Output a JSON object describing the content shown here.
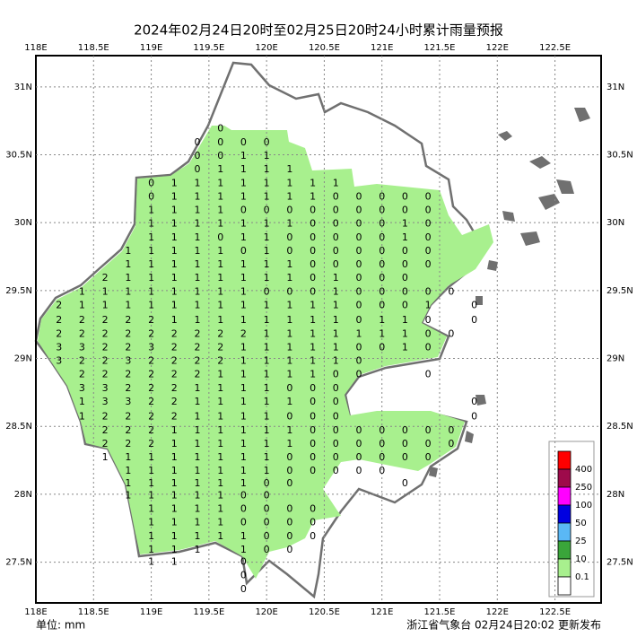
{
  "map": {
    "title": "2024年02月24日20时至02月25日20时24小时累计雨量预报",
    "unit": "单位: mm",
    "footer": "浙江省气象台 02月24日20:02 更新发布",
    "xlim": [
      118,
      122.9
    ],
    "ylim": [
      27.2,
      31.23
    ],
    "xticks": [
      {
        "value": 118,
        "label": "118E"
      },
      {
        "value": 118.5,
        "label": "118.5E"
      },
      {
        "value": 119,
        "label": "119E"
      },
      {
        "value": 119.5,
        "label": "119.5E"
      },
      {
        "value": 120,
        "label": "120E"
      },
      {
        "value": 120.5,
        "label": "120.5E"
      },
      {
        "value": 121,
        "label": "121E"
      },
      {
        "value": 121.5,
        "label": "121.5E"
      },
      {
        "value": 122,
        "label": "122E"
      },
      {
        "value": 122.5,
        "label": "122.5E"
      }
    ],
    "yticks": [
      {
        "value": 27.5,
        "label": "27.5N"
      },
      {
        "value": 28,
        "label": "28N"
      },
      {
        "value": 28.5,
        "label": "28.5N"
      },
      {
        "value": 29,
        "label": "29N"
      },
      {
        "value": 29.5,
        "label": "29.5N"
      },
      {
        "value": 30,
        "label": "30N"
      },
      {
        "value": 30.5,
        "label": "30.5N"
      },
      {
        "value": 31,
        "label": "31N"
      }
    ],
    "legend": [
      {
        "label": "400",
        "color": "#ff0000"
      },
      {
        "label": "250",
        "color": "#9e0a4b"
      },
      {
        "label": "100",
        "color": "#ff00ff"
      },
      {
        "label": "50",
        "color": "#0000e0"
      },
      {
        "label": "25",
        "color": "#5ab8f5"
      },
      {
        "label": "10",
        "color": "#3aa53a"
      },
      {
        "label": "0.1",
        "color": "#a8f08e"
      },
      {
        "label": null,
        "color": "#ffffff"
      }
    ],
    "stations": {
      "lon": [
        118.2,
        118.4,
        118.6,
        118.8,
        119.0,
        119.2,
        119.4,
        119.6,
        119.8,
        120.0,
        120.2,
        120.4,
        120.6,
        120.8,
        121.0,
        121.2,
        121.4,
        121.6,
        121.8
      ],
      "rows": [
        {
          "lat": 30.69,
          "values": [
            null,
            null,
            null,
            null,
            null,
            null,
            null,
            0,
            null,
            null,
            null,
            null,
            null,
            null,
            null,
            null,
            null,
            null,
            null
          ]
        },
        {
          "lat": 30.59,
          "values": [
            null,
            null,
            null,
            null,
            null,
            null,
            0,
            0,
            0,
            0,
            null,
            null,
            null,
            null,
            null,
            null,
            null,
            null,
            null
          ]
        },
        {
          "lat": 30.49,
          "values": [
            null,
            null,
            null,
            null,
            null,
            null,
            0,
            0,
            1,
            1,
            null,
            null,
            null,
            null,
            null,
            null,
            null,
            null,
            null
          ]
        },
        {
          "lat": 30.39,
          "values": [
            null,
            null,
            null,
            null,
            null,
            null,
            0,
            1,
            1,
            1,
            1,
            null,
            null,
            null,
            null,
            null,
            null,
            null,
            null
          ]
        },
        {
          "lat": 30.29,
          "values": [
            null,
            null,
            null,
            null,
            0,
            1,
            1,
            1,
            1,
            1,
            1,
            1,
            1,
            null,
            null,
            null,
            null,
            null,
            null
          ]
        },
        {
          "lat": 30.19,
          "values": [
            null,
            null,
            null,
            null,
            0,
            1,
            1,
            1,
            1,
            1,
            1,
            1,
            0,
            0,
            0,
            0,
            0,
            null,
            null
          ]
        },
        {
          "lat": 30.09,
          "values": [
            null,
            null,
            null,
            null,
            1,
            1,
            1,
            1,
            0,
            0,
            0,
            0,
            0,
            0,
            0,
            0,
            0,
            null,
            null
          ]
        },
        {
          "lat": 29.99,
          "values": [
            null,
            null,
            null,
            null,
            1,
            1,
            1,
            1,
            1,
            1,
            1,
            0,
            0,
            0,
            0,
            1,
            0,
            null,
            null
          ]
        },
        {
          "lat": 29.89,
          "values": [
            null,
            null,
            null,
            null,
            1,
            1,
            1,
            0,
            1,
            1,
            0,
            0,
            0,
            0,
            0,
            1,
            0,
            null,
            null
          ]
        },
        {
          "lat": 29.79,
          "values": [
            null,
            null,
            null,
            1,
            1,
            1,
            1,
            1,
            0,
            1,
            0,
            0,
            0,
            0,
            0,
            0,
            0,
            null,
            null
          ]
        },
        {
          "lat": 29.69,
          "values": [
            null,
            null,
            null,
            1,
            1,
            1,
            1,
            1,
            1,
            1,
            1,
            0,
            0,
            0,
            0,
            0,
            0,
            null,
            null
          ]
        },
        {
          "lat": 29.59,
          "values": [
            null,
            null,
            2,
            1,
            1,
            1,
            1,
            1,
            1,
            1,
            1,
            0,
            1,
            0,
            0,
            0,
            null,
            null,
            null
          ]
        },
        {
          "lat": 29.49,
          "values": [
            null,
            1,
            1,
            1,
            1,
            1,
            1,
            1,
            1,
            0,
            0,
            0,
            1,
            0,
            0,
            0,
            0,
            0,
            null
          ]
        },
        {
          "lat": 29.39,
          "values": [
            2,
            1,
            1,
            1,
            1,
            1,
            1,
            1,
            1,
            1,
            1,
            1,
            1,
            0,
            0,
            0,
            1,
            null,
            0
          ]
        },
        {
          "lat": 29.28,
          "values": [
            2,
            2,
            2,
            2,
            2,
            1,
            1,
            1,
            1,
            1,
            1,
            1,
            1,
            0,
            1,
            1,
            0,
            null,
            0
          ]
        },
        {
          "lat": 29.18,
          "values": [
            2,
            2,
            2,
            2,
            2,
            2,
            2,
            2,
            2,
            1,
            1,
            1,
            1,
            1,
            1,
            1,
            0,
            0,
            null
          ]
        },
        {
          "lat": 29.08,
          "values": [
            3,
            3,
            2,
            2,
            3,
            2,
            2,
            2,
            1,
            1,
            1,
            1,
            1,
            0,
            0,
            1,
            0,
            null,
            null
          ]
        },
        {
          "lat": 28.98,
          "values": [
            3,
            2,
            2,
            3,
            2,
            2,
            2,
            2,
            1,
            1,
            1,
            1,
            1,
            0,
            null,
            null,
            null,
            null,
            null
          ]
        },
        {
          "lat": 28.88,
          "values": [
            null,
            2,
            2,
            2,
            2,
            2,
            2,
            1,
            1,
            1,
            1,
            1,
            0,
            0,
            null,
            null,
            0,
            null,
            null
          ]
        },
        {
          "lat": 28.78,
          "values": [
            null,
            3,
            3,
            2,
            2,
            2,
            1,
            1,
            1,
            1,
            0,
            0,
            0,
            null,
            null,
            null,
            null,
            null,
            null
          ]
        },
        {
          "lat": 28.68,
          "values": [
            null,
            1,
            3,
            3,
            2,
            2,
            1,
            1,
            1,
            1,
            1,
            0,
            0,
            null,
            null,
            null,
            null,
            null,
            0
          ]
        },
        {
          "lat": 28.57,
          "values": [
            null,
            1,
            2,
            2,
            2,
            2,
            1,
            1,
            1,
            1,
            0,
            0,
            0,
            null,
            null,
            null,
            null,
            null,
            0
          ]
        },
        {
          "lat": 28.47,
          "values": [
            null,
            null,
            2,
            2,
            2,
            1,
            1,
            1,
            1,
            1,
            1,
            0,
            0,
            0,
            0,
            0,
            0,
            0,
            null
          ]
        },
        {
          "lat": 28.37,
          "values": [
            null,
            null,
            2,
            2,
            2,
            1,
            1,
            1,
            1,
            1,
            1,
            0,
            0,
            0,
            0,
            0,
            0,
            0,
            null
          ]
        },
        {
          "lat": 28.27,
          "values": [
            null,
            null,
            1,
            1,
            1,
            1,
            1,
            1,
            1,
            1,
            0,
            0,
            0,
            0,
            0,
            0,
            0,
            null,
            null
          ]
        },
        {
          "lat": 28.17,
          "values": [
            null,
            null,
            null,
            1,
            1,
            1,
            1,
            1,
            1,
            1,
            0,
            0,
            0,
            0,
            0,
            null,
            null,
            null,
            null
          ]
        },
        {
          "lat": 28.08,
          "values": [
            null,
            null,
            null,
            1,
            1,
            1,
            1,
            1,
            1,
            0,
            0,
            null,
            null,
            null,
            null,
            0,
            null,
            null,
            null
          ]
        },
        {
          "lat": 27.99,
          "values": [
            null,
            null,
            null,
            1,
            1,
            1,
            1,
            1,
            0,
            0,
            null,
            null,
            null,
            null,
            null,
            null,
            null,
            null,
            null
          ]
        },
        {
          "lat": 27.89,
          "values": [
            null,
            null,
            null,
            null,
            1,
            1,
            1,
            1,
            0,
            0,
            0,
            0,
            null,
            null,
            null,
            null,
            null,
            null,
            null
          ]
        },
        {
          "lat": 27.79,
          "values": [
            null,
            null,
            null,
            null,
            1,
            1,
            1,
            1,
            0,
            0,
            0,
            0,
            null,
            null,
            null,
            null,
            null,
            null,
            null
          ]
        },
        {
          "lat": 27.69,
          "values": [
            null,
            null,
            null,
            null,
            1,
            1,
            1,
            1,
            1,
            0,
            0,
            0,
            null,
            null,
            null,
            null,
            null,
            null,
            null
          ]
        },
        {
          "lat": 27.59,
          "values": [
            null,
            null,
            null,
            null,
            1,
            1,
            1,
            null,
            1,
            0,
            0,
            null,
            null,
            null,
            null,
            null,
            null,
            null,
            null
          ]
        },
        {
          "lat": 27.5,
          "values": [
            null,
            null,
            null,
            null,
            1,
            1,
            null,
            null,
            0,
            null,
            null,
            null,
            null,
            null,
            null,
            null,
            null,
            null,
            null
          ]
        },
        {
          "lat": 27.4,
          "values": [
            null,
            null,
            null,
            null,
            null,
            null,
            null,
            null,
            0,
            null,
            null,
            null,
            null,
            null,
            null,
            null,
            null,
            null,
            null
          ]
        },
        {
          "lat": 27.3,
          "values": [
            null,
            null,
            null,
            null,
            null,
            null,
            null,
            null,
            0,
            null,
            null,
            null,
            null,
            null,
            null,
            null,
            null,
            null,
            null
          ]
        }
      ]
    }
  }
}
